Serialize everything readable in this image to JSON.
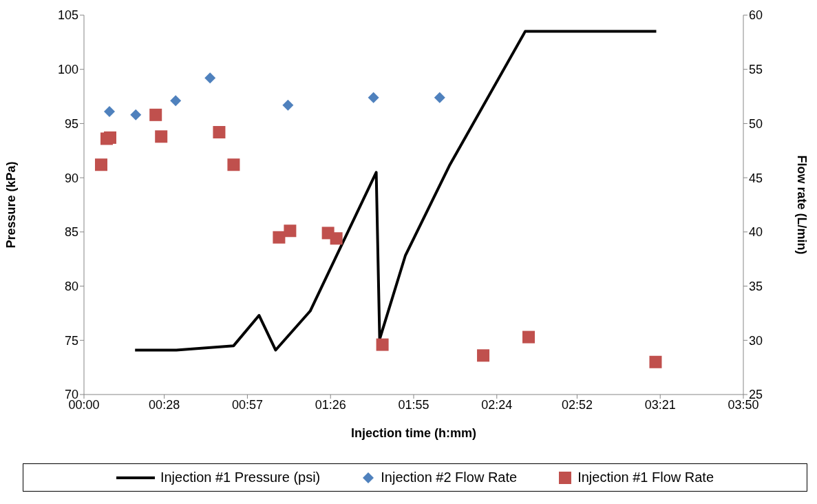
{
  "chart_data": {
    "type": "line",
    "xlabel": "Injection time (h:mm)",
    "ylabel": "Pressure (kPa)",
    "y2label": "Flow rate (L/min)",
    "xlim": [
      0,
      3.8333
    ],
    "xticks": [
      {
        "value": 0,
        "label": "00:00"
      },
      {
        "value": 0.4667,
        "label": "00:28"
      },
      {
        "value": 0.95,
        "label": "00:57"
      },
      {
        "value": 1.4333,
        "label": "01:26"
      },
      {
        "value": 1.9167,
        "label": "01:55"
      },
      {
        "value": 2.4,
        "label": "02:24"
      },
      {
        "value": 2.8667,
        "label": "02:52"
      },
      {
        "value": 3.35,
        "label": "03:21"
      },
      {
        "value": 3.8333,
        "label": "03:50"
      }
    ],
    "ylim": [
      70,
      105
    ],
    "yticks": [
      70,
      75,
      80,
      85,
      90,
      95,
      100,
      105
    ],
    "y2lim": [
      25,
      60
    ],
    "y2ticks": [
      25,
      30,
      35,
      40,
      45,
      50,
      55,
      60
    ],
    "grid": false,
    "legend": "bottom",
    "series": [
      {
        "name": "Injection #1 Pressure (psi)",
        "color": "#000000",
        "marker": "none",
        "line_style": "solid",
        "x": [
          0.297,
          0.537,
          0.87,
          1.018,
          1.114,
          1.315,
          1.699,
          1.719,
          1.868,
          2.124,
          2.565,
          3.327
        ],
        "values": [
          74.1,
          74.1,
          74.5,
          77.3,
          74.1,
          77.7,
          90.5,
          75.1,
          82.8,
          91.1,
          103.5,
          103.5
        ]
      },
      {
        "name": "Injection #2 Flow Rate",
        "type": "scatter",
        "axis": "y2",
        "color": "#4f81bd",
        "marker": "diamond",
        "x": [
          0.148,
          0.301,
          0.533,
          0.733,
          1.186,
          1.683,
          2.068
        ],
        "values": [
          51.1,
          50.8,
          52.1,
          54.2,
          51.7,
          52.4,
          52.4
        ]
      },
      {
        "name": "Injection #1 Flow Rate",
        "type": "scatter",
        "axis": "y2",
        "color": "#c0504d",
        "marker": "square",
        "x": [
          0.1,
          0.132,
          0.152,
          0.417,
          0.449,
          0.786,
          0.87,
          1.134,
          1.198,
          1.419,
          1.467,
          1.735,
          2.321,
          2.585,
          3.323
        ],
        "values": [
          46.2,
          48.6,
          48.7,
          50.8,
          48.8,
          49.2,
          46.2,
          39.5,
          40.1,
          39.9,
          39.4,
          29.6,
          28.6,
          30.3,
          28.0
        ]
      }
    ]
  }
}
